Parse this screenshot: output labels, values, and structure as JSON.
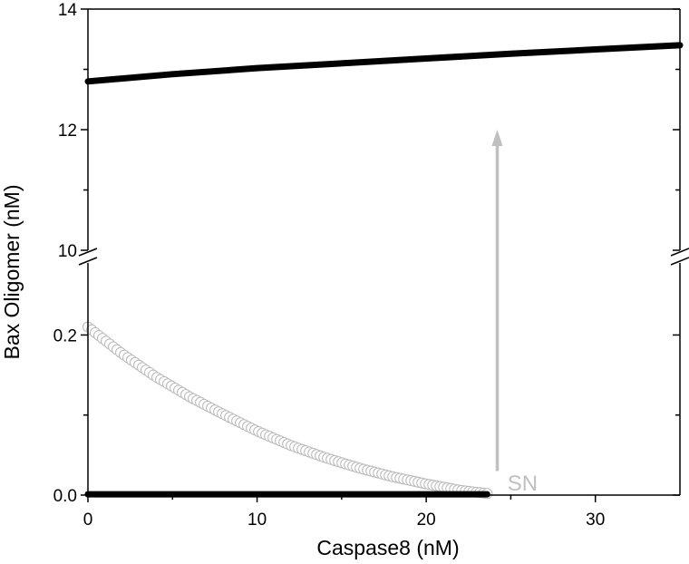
{
  "chart_data": {
    "type": "line",
    "title": "",
    "xlabel": "Caspase8 (nM)",
    "ylabel": "Bax Oligomer (nM)",
    "xlim": [
      0,
      35
    ],
    "x_ticks": [
      "0",
      "10",
      "20",
      "30"
    ],
    "y_axis_break": true,
    "upper_ylim": [
      10,
      14
    ],
    "upper_y_ticks": [
      "10",
      "12",
      "14"
    ],
    "lower_ylim": [
      0,
      0.29
    ],
    "lower_y_ticks": [
      "0.0",
      "0.2"
    ],
    "grid": false,
    "legend": "none",
    "series": [
      {
        "style": "thick-solid-black",
        "panel": "upper",
        "x": [
          0,
          5,
          10,
          15,
          20,
          25,
          30,
          35
        ],
        "y": [
          12.8,
          12.92,
          13.02,
          13.1,
          13.18,
          13.26,
          13.33,
          13.4
        ]
      },
      {
        "style": "open-circles-gray",
        "panel": "lower",
        "x": [
          0,
          2,
          4,
          6,
          8,
          10,
          12,
          14,
          16,
          18,
          20,
          22,
          23.6
        ],
        "y": [
          0.21,
          0.177,
          0.148,
          0.123,
          0.101,
          0.08,
          0.062,
          0.047,
          0.034,
          0.023,
          0.014,
          0.006,
          0.002
        ]
      },
      {
        "style": "thick-solid-black",
        "panel": "lower",
        "x": [
          0,
          23.6
        ],
        "y": [
          0.001,
          0.001
        ]
      }
    ],
    "annotations": [
      {
        "text": "SN",
        "x": 24.8,
        "y": 0.01,
        "color": "#c0c0c0"
      }
    ],
    "arrow": {
      "x": 24.2,
      "from": [
        0.03,
        "lower"
      ],
      "to": [
        12.0,
        "upper"
      ],
      "color": "#c0c0c0"
    }
  }
}
